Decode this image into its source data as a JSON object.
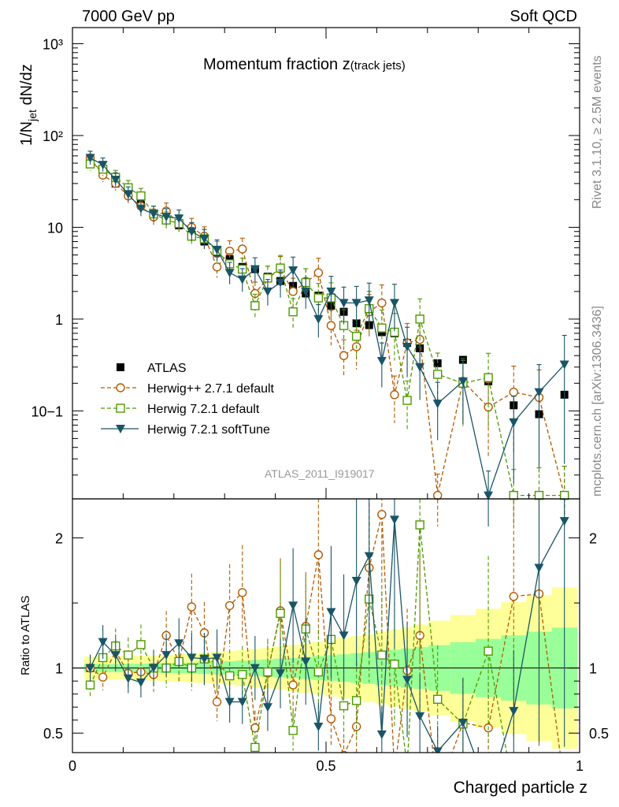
{
  "header": {
    "left": "7000 GeV pp",
    "right": "Soft QCD"
  },
  "side": {
    "rivet": "Rivet 3.1.10, ≥ 2.5M events",
    "mcplots": "mcplots.cern.ch [arXiv:1306.3436]"
  },
  "chart_data": {
    "type": "scatter",
    "title_main": "Momentum fraction z",
    "title_sub": "(track jets)",
    "analysis": "ATLAS_2011_I919017",
    "ylabel_main": "1/N",
    "ylabel_sub": "jet",
    "ylabel_tail": " dN/dz",
    "ylabel_ratio": "Ratio to ATLAS",
    "xlabel": "Charged particle z",
    "xlim": [
      0,
      1
    ],
    "ylim_main": [
      0.011,
      1500
    ],
    "ylim_ratio": [
      0.35,
      2.3
    ],
    "ylog": true,
    "x_ticks": [
      "0",
      "0.5",
      "1"
    ],
    "y_ticks_main": [
      "10−1",
      "1",
      "10",
      "10²",
      "10³"
    ],
    "y_ticks_ratio": [
      "0.5",
      "1",
      "2"
    ],
    "legend_position": "lower-left",
    "x": [
      0.035,
      0.06,
      0.085,
      0.11,
      0.135,
      0.16,
      0.185,
      0.21,
      0.235,
      0.26,
      0.285,
      0.31,
      0.335,
      0.36,
      0.385,
      0.41,
      0.435,
      0.46,
      0.485,
      0.51,
      0.535,
      0.56,
      0.585,
      0.61,
      0.635,
      0.66,
      0.685,
      0.72,
      0.77,
      0.82,
      0.87,
      0.92,
      0.97
    ],
    "series": [
      {
        "name": "ATLAS",
        "color": "#000000",
        "values": [
          57,
          40,
          30,
          25,
          18,
          14,
          12,
          10.5,
          8.3,
          7,
          5.3,
          4.5,
          3.7,
          3.5,
          2.9,
          2.6,
          2.3,
          1.9,
          1.8,
          1.4,
          1.2,
          0.9,
          0.86,
          0.72,
          0.7,
          0.55,
          0.48,
          0.33,
          0.36,
          0.21,
          0.115,
          0.092,
          0.15
        ]
      },
      {
        "name": "Herwig++ 2.7.1 default",
        "color": "#b35900",
        "values": [
          57,
          37,
          30,
          22,
          17,
          13,
          15,
          11,
          10,
          8,
          3.7,
          5.5,
          5.8,
          1.9,
          2.8,
          3.5,
          2.0,
          2.5,
          3.2,
          0.85,
          0.4,
          0.5,
          1.2,
          1.5,
          0.15,
          0.55,
          0.6,
          0.012,
          0.21,
          0.11,
          0.16,
          0.14,
          0.012
        ]
      },
      {
        "name": "Herwig 7.2.1 default",
        "color": "#4d9900",
        "values": [
          49,
          43,
          35,
          27,
          22,
          14,
          12,
          11,
          8,
          7.5,
          5.5,
          4,
          3.5,
          1.4,
          2.8,
          3.6,
          1.2,
          2.5,
          1.7,
          1.7,
          0.85,
          0.65,
          1.3,
          0.8,
          0.72,
          0.13,
          1.0,
          0.25,
          0.2,
          0.23,
          0.012,
          0.012,
          0.012
        ]
      },
      {
        "name": "Herwig 7.2.1 softTune",
        "color": "#1a5566",
        "values": [
          57,
          48,
          33,
          23,
          16,
          14,
          13,
          12.5,
          9,
          7.5,
          5.7,
          3.2,
          2.7,
          3.5,
          2.0,
          2.5,
          3.4,
          2.0,
          1.0,
          2.0,
          1.5,
          1.5,
          1.6,
          0.35,
          1.5,
          0.5,
          0.3,
          0.12,
          0.21,
          0.012,
          0.075,
          0.16,
          0.32
        ]
      }
    ],
    "ratio_series": [
      {
        "name": "Herwig++ 2.7.1 default",
        "values": [
          1.0,
          0.93,
          1.13,
          0.96,
          0.97,
          0.95,
          1.25,
          1.05,
          1.47,
          1.27,
          0.74,
          1.48,
          1.58,
          0.54,
          0.96,
          1.44,
          0.87,
          1.32,
          1.87,
          0.61,
          0.33,
          0.55,
          1.77,
          2.18,
          0.21,
          0.98,
          1.25,
          0.04,
          0.58,
          0.54,
          1.55,
          1.57,
          0.1
        ]
      },
      {
        "name": "Herwig 7.2.1 default",
        "values": [
          0.87,
          1.08,
          1.17,
          1.1,
          1.18,
          1.0,
          1.0,
          1.05,
          1.0,
          1.07,
          1.04,
          0.94,
          0.95,
          0.39,
          0.97,
          1.42,
          0.52,
          1.3,
          0.97,
          1.22,
          0.71,
          0.75,
          1.53,
          1.1,
          1.03,
          0.24,
          2.1,
          0.76,
          0.57,
          1.13,
          0.05,
          0.05,
          0.05
        ]
      },
      {
        "name": "Herwig 7.2.1 softTune",
        "values": [
          1.0,
          1.2,
          1.1,
          0.92,
          0.89,
          1.0,
          1.1,
          1.19,
          1.08,
          1.07,
          1.08,
          0.74,
          0.74,
          1.0,
          0.7,
          0.96,
          1.48,
          1.05,
          0.55,
          1.43,
          1.25,
          1.67,
          1.86,
          0.49,
          2.14,
          0.91,
          0.63,
          0.36,
          0.58,
          0.05,
          0.67,
          1.77,
          2.13
        ]
      }
    ]
  }
}
